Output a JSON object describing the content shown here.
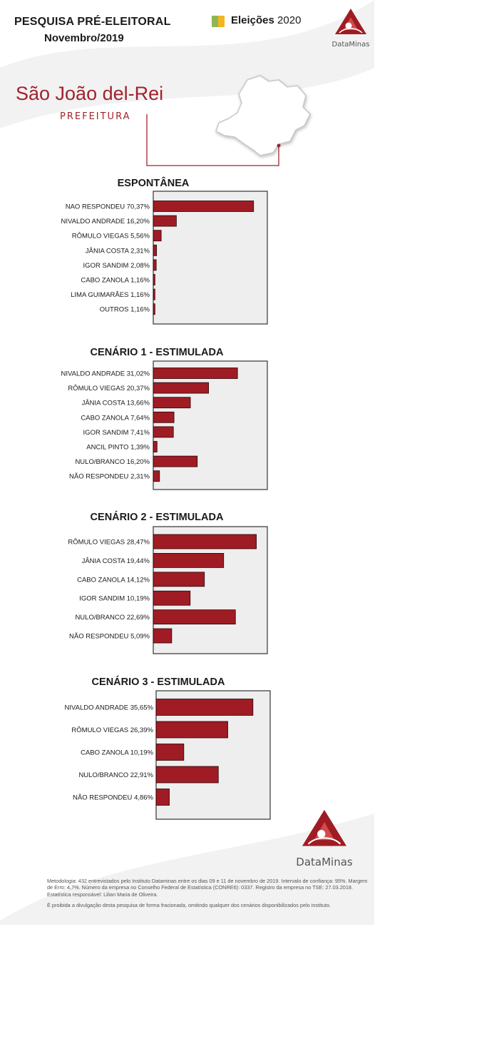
{
  "header": {
    "title": "PESQUISA PRÉ-ELEITORAL",
    "date": "Novembro/2019",
    "badge_bold": "Eleições",
    "badge_year": "2020",
    "brand": "DataMinas"
  },
  "location": {
    "city": "São João del-Rei",
    "office": "PREFEITURA"
  },
  "colors": {
    "bar": "#9f1c24",
    "accent": "#a1232f",
    "panel_bg": "#eeeeee",
    "flag_green": "#8fb654",
    "flag_yellow": "#f0b722"
  },
  "chart_data": [
    {
      "type": "bar",
      "orientation": "horizontal",
      "title": "ESPONTÂNEA",
      "categories": [
        "NAO RESPONDEU",
        "NIVALDO ANDRADE",
        "RÔMULO VIEGAS",
        "JÂNIA COSTA",
        "IGOR SANDIM",
        "CABO ZANOLA",
        "LIMA GUIMARÃES",
        "OUTROS"
      ],
      "values": [
        70.37,
        16.2,
        5.56,
        2.31,
        2.08,
        1.16,
        1.16,
        1.16
      ],
      "value_labels": [
        "70,37%",
        "16,20%",
        "5,56%",
        "2,31%",
        "2,08%",
        "1,16%",
        "1,16%",
        "1,16%"
      ],
      "xlim": [
        0,
        80
      ],
      "grid": false
    },
    {
      "type": "bar",
      "orientation": "horizontal",
      "title": "CENÁRIO 1 - ESTIMULADA",
      "categories": [
        "NIVALDO ANDRADE",
        "RÔMULO VIEGAS",
        "JÂNIA COSTA",
        "CABO ZANOLA",
        "IGOR SANDIM",
        "ANCIL PINTO",
        "NULO/BRANCO",
        "NÃO RESPONDEU"
      ],
      "values": [
        31.02,
        20.37,
        13.66,
        7.64,
        7.41,
        1.39,
        16.2,
        2.31
      ],
      "value_labels": [
        "31,02%",
        "20,37%",
        "13,66%",
        "7,64%",
        "7,41%",
        "1,39%",
        "16,20%",
        "2,31%"
      ],
      "xlim": [
        0,
        42
      ],
      "grid": false
    },
    {
      "type": "bar",
      "orientation": "horizontal",
      "title": "CENÁRIO 2 - ESTIMULADA",
      "categories": [
        "RÔMULO VIEGAS",
        "JÂNIA COSTA",
        "CABO ZANOLA",
        "IGOR SANDIM",
        "NULO/BRANCO",
        "NÃO RESPONDEU"
      ],
      "values": [
        28.47,
        19.44,
        14.12,
        10.19,
        22.69,
        5.09
      ],
      "value_labels": [
        "28,47%",
        "19,44%",
        "14,12%",
        "10,19%",
        "22,69%",
        "5,09%"
      ],
      "xlim": [
        0,
        31.5
      ],
      "grid": false
    },
    {
      "type": "bar",
      "orientation": "horizontal",
      "title": "CENÁRIO 3 - ESTIMULADA",
      "categories": [
        "NIVALDO ANDRADE",
        "RÔMULO VIEGAS",
        "CABO ZANOLA",
        "NULO/BRANCO",
        "NÃO RESPONDEU"
      ],
      "values": [
        35.65,
        26.39,
        10.19,
        22.91,
        4.86
      ],
      "value_labels": [
        "35,65%",
        "26,39%",
        "10,19%",
        "22,91%",
        "4,86%"
      ],
      "xlim": [
        0,
        42
      ],
      "grid": false
    }
  ],
  "footer": {
    "methodology": "Metodologia: 432 entrevistados pelo Instituto Dataminas entre os dias 09 e 11 de novembro de 2019. Intervalo de confiança: 95%. Margem de Erro: 4,7%. Número da empresa no Conselho Federal de Estatística (CONRE6): 0337. Registro da empresa no TSE: 27.03.2018. Estatística responsável: Lilian Maria de Oliveira.",
    "notice": "É proibida a divulgação desta pesquisa de forma fracionada, omitindo qualquer dos cenários disponibilizados pelo instituto."
  }
}
